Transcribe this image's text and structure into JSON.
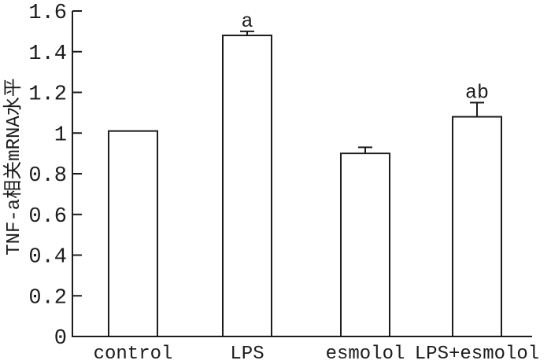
{
  "chart_data": {
    "type": "bar",
    "title": "",
    "xlabel": "",
    "ylabel": "TNF-a相关mRNA水平",
    "categories": [
      "control",
      "LPS",
      "esmolol",
      "LPS+esmolol"
    ],
    "values": [
      1.01,
      1.48,
      0.9,
      1.08
    ],
    "errors": [
      0,
      0.02,
      0.03,
      0.07
    ],
    "annotations": [
      "",
      "a",
      "",
      "ab"
    ],
    "ylim": [
      0,
      1.6
    ],
    "yticks": [
      0,
      0.2,
      0.4,
      0.6,
      0.8,
      1,
      1.2,
      1.4,
      1.6
    ],
    "ytick_labels": [
      "0",
      "0.2",
      "0.4",
      "0.6",
      "0.8",
      "1",
      "1.2",
      "1.4",
      "1.6"
    ],
    "grid": false,
    "legend_position": "none",
    "colors": {
      "background": "#ffffff",
      "bar_fill": "#ffffff",
      "bar_stroke": "#1c1c1c",
      "axis": "#1c1c1c",
      "text": "#1c1c1c"
    }
  }
}
